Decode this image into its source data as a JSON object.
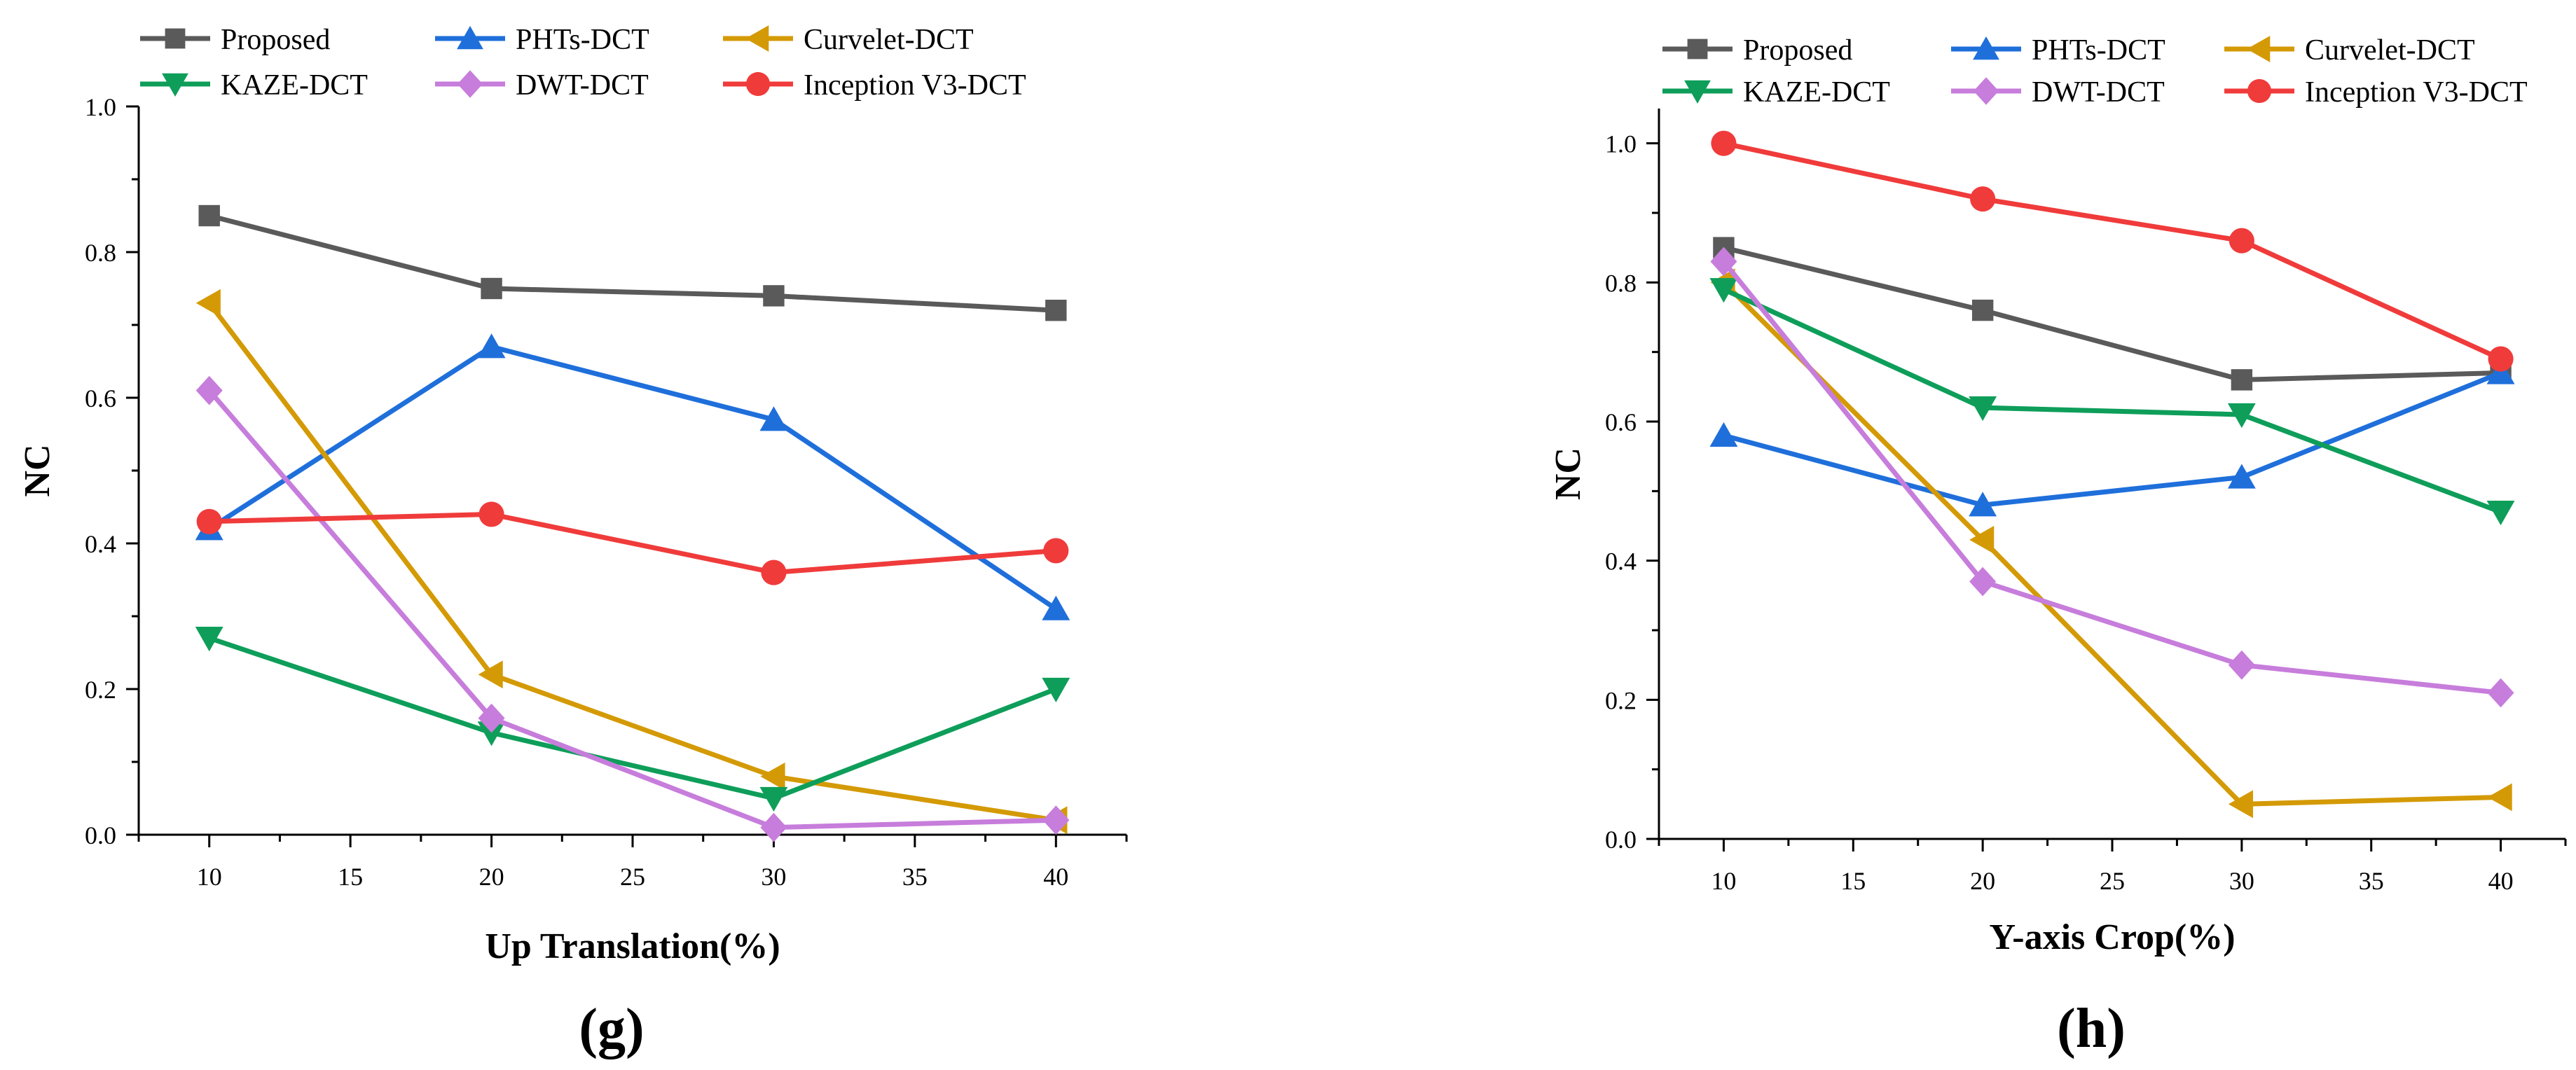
{
  "chart_data": [
    {
      "type": "line",
      "panel_label": "(g)",
      "xlabel": "Up Translation(%)",
      "ylabel": "NC",
      "x": [
        10,
        20,
        30,
        40
      ],
      "xticks": [
        10,
        15,
        20,
        25,
        30,
        35,
        40
      ],
      "xlim": [
        7.5,
        42.5
      ],
      "ylim": [
        0,
        1.0
      ],
      "yticks": [
        0.0,
        0.2,
        0.4,
        0.6,
        0.8,
        1.0
      ],
      "ytick_labels": [
        "0.0",
        "0.2",
        "0.4",
        "0.6",
        "0.8",
        "1.0"
      ],
      "legend_position": "top",
      "series": [
        {
          "name": "Proposed",
          "values": [
            0.85,
            0.75,
            0.74,
            0.72
          ],
          "color": "#5a5a5a",
          "marker": "square"
        },
        {
          "name": "PHTs-DCT",
          "values": [
            0.42,
            0.67,
            0.57,
            0.31
          ],
          "color": "#1f6fdb",
          "marker": "triangle-up"
        },
        {
          "name": "Curvelet-DCT",
          "values": [
            0.73,
            0.22,
            0.08,
            0.02
          ],
          "color": "#d49a06",
          "marker": "triangle-left"
        },
        {
          "name": "KAZE-DCT",
          "values": [
            0.27,
            0.14,
            0.05,
            0.2
          ],
          "color": "#0e9e5a",
          "marker": "triangle-down"
        },
        {
          "name": "DWT-DCT",
          "values": [
            0.61,
            0.16,
            0.01,
            0.02
          ],
          "color": "#c77ddb",
          "marker": "diamond"
        },
        {
          "name": "Inception V3-DCT",
          "values": [
            0.43,
            0.44,
            0.36,
            0.39
          ],
          "color": "#f03b3b",
          "marker": "circle"
        }
      ]
    },
    {
      "type": "line",
      "panel_label": "(h)",
      "xlabel": "Y-axis Crop(%)",
      "ylabel": "NC",
      "x": [
        10,
        20,
        30,
        40
      ],
      "xticks": [
        10,
        15,
        20,
        25,
        30,
        35,
        40
      ],
      "xlim": [
        7.5,
        42.5
      ],
      "ylim": [
        0,
        1.05
      ],
      "yticks": [
        0.0,
        0.2,
        0.4,
        0.6,
        0.8,
        1.0
      ],
      "ytick_labels": [
        "0.0",
        "0.2",
        "0.4",
        "0.6",
        "0.8",
        "1.0"
      ],
      "legend_position": "top",
      "series": [
        {
          "name": "Proposed",
          "values": [
            0.85,
            0.76,
            0.66,
            0.67
          ],
          "color": "#5a5a5a",
          "marker": "square"
        },
        {
          "name": "PHTs-DCT",
          "values": [
            0.58,
            0.48,
            0.52,
            0.67
          ],
          "color": "#1f6fdb",
          "marker": "triangle-up"
        },
        {
          "name": "Curvelet-DCT",
          "values": [
            0.8,
            0.43,
            0.05,
            0.06
          ],
          "color": "#d49a06",
          "marker": "triangle-left"
        },
        {
          "name": "KAZE-DCT",
          "values": [
            0.79,
            0.62,
            0.61,
            0.47
          ],
          "color": "#0e9e5a",
          "marker": "triangle-down"
        },
        {
          "name": "DWT-DCT",
          "values": [
            0.83,
            0.37,
            0.25,
            0.21
          ],
          "color": "#c77ddb",
          "marker": "diamond"
        },
        {
          "name": "Inception V3-DCT",
          "values": [
            1.0,
            0.92,
            0.86,
            0.69
          ],
          "color": "#f03b3b",
          "marker": "circle"
        }
      ]
    }
  ]
}
